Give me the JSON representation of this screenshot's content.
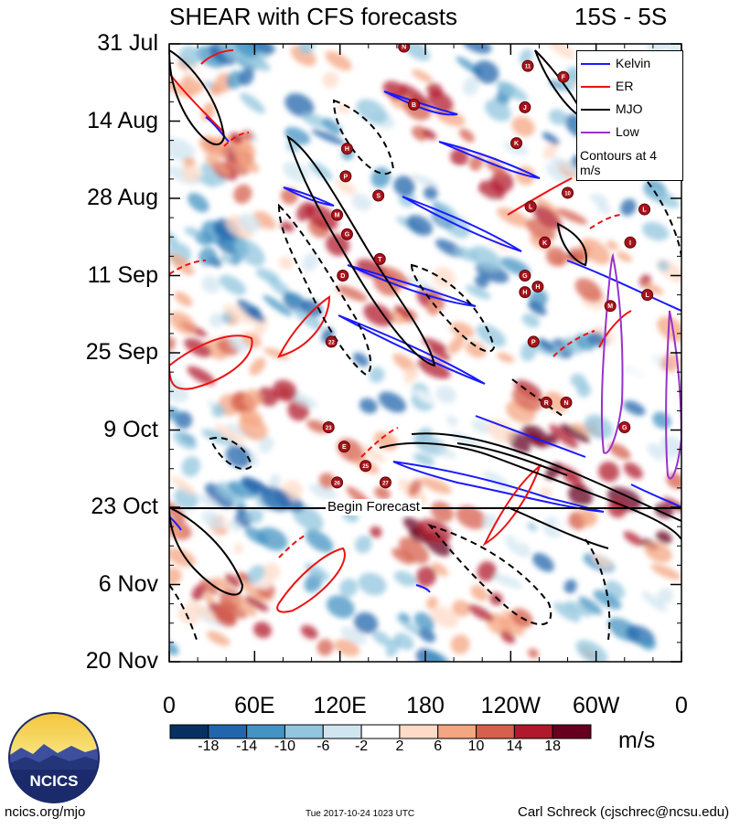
{
  "title": {
    "left": "SHEAR with CFS forecasts",
    "right": "15S - 5S"
  },
  "chart_data": {
    "type": "heatmap",
    "title": "SHEAR with CFS forecasts",
    "region": "15S - 5S",
    "xlabel": "",
    "ylabel": "",
    "x_tick_labels": [
      "0",
      "60E",
      "120E",
      "180",
      "120W",
      "60W",
      "0"
    ],
    "x_ticks_deg_east": [
      0,
      60,
      120,
      180,
      240,
      300,
      360
    ],
    "xlim": [
      0,
      360
    ],
    "y_tick_labels": [
      "31 Jul",
      "14 Aug",
      "28 Aug",
      "11 Sep",
      "25 Sep",
      "9 Oct",
      "23 Oct",
      "6 Nov",
      "20 Nov"
    ],
    "y_ticks_day": [
      0,
      14,
      28,
      42,
      56,
      70,
      84,
      98,
      112
    ],
    "ylim": [
      0,
      112
    ],
    "forecast_start_day": 84,
    "forecast_label": "Begin Forecast",
    "colorbar": {
      "units": "m/s",
      "labels": [
        "-18",
        "-14",
        "-10",
        "-6",
        "-2",
        "2",
        "6",
        "10",
        "14",
        "18"
      ],
      "levels": [
        -18,
        -14,
        -10,
        -6,
        -2,
        2,
        6,
        10,
        14,
        18
      ],
      "colors": [
        "#053061",
        "#2166ac",
        "#4393c3",
        "#92c5de",
        "#d1e5f0",
        "#ffffff",
        "#fddbc7",
        "#f4a582",
        "#d6604d",
        "#b2182b",
        "#67001f"
      ]
    },
    "legend": [
      {
        "name": "Kelvin",
        "color": "#1a1aff"
      },
      {
        "name": "ER",
        "color": "#ee1111"
      },
      {
        "name": "MJO",
        "color": "#000000"
      },
      {
        "name": "Low",
        "color": "#9932cc"
      }
    ],
    "legend_note": "Contours at 4 m/s",
    "storm_markers": [
      {
        "label": "N",
        "lon": 165,
        "day": 0.5
      },
      {
        "label": "11",
        "lon": 252,
        "day": 4
      },
      {
        "label": "F",
        "lon": 277,
        "day": 6
      },
      {
        "label": "B",
        "lon": 172,
        "day": 11
      },
      {
        "label": "J",
        "lon": 250,
        "day": 11.5
      },
      {
        "label": "K",
        "lon": 244,
        "day": 18
      },
      {
        "label": "H",
        "lon": 125,
        "day": 19
      },
      {
        "label": "P",
        "lon": 124,
        "day": 24
      },
      {
        "label": "S",
        "lon": 147,
        "day": 27.5
      },
      {
        "label": "10",
        "lon": 280,
        "day": 27
      },
      {
        "label": "L",
        "lon": 254,
        "day": 29.5
      },
      {
        "label": "M",
        "lon": 118,
        "day": 31
      },
      {
        "label": "L",
        "lon": 334,
        "day": 30
      },
      {
        "label": "G",
        "lon": 125,
        "day": 34.5
      },
      {
        "label": "K",
        "lon": 264,
        "day": 36
      },
      {
        "label": "I",
        "lon": 324,
        "day": 36
      },
      {
        "label": "T",
        "lon": 148,
        "day": 39
      },
      {
        "label": "D",
        "lon": 122,
        "day": 42
      },
      {
        "label": "G",
        "lon": 250,
        "day": 42
      },
      {
        "label": "H",
        "lon": 250,
        "day": 45
      },
      {
        "label": "H",
        "lon": 259,
        "day": 44
      },
      {
        "label": "L",
        "lon": 336,
        "day": 45.5
      },
      {
        "label": "M",
        "lon": 310,
        "day": 47.5
      },
      {
        "label": "22",
        "lon": 114,
        "day": 54
      },
      {
        "label": "P",
        "lon": 256,
        "day": 54
      },
      {
        "label": "R",
        "lon": 265,
        "day": 65
      },
      {
        "label": "N",
        "lon": 279,
        "day": 65
      },
      {
        "label": "23",
        "lon": 112,
        "day": 69.5
      },
      {
        "label": "G",
        "lon": 320,
        "day": 69.5
      },
      {
        "label": "E",
        "lon": 123,
        "day": 73
      },
      {
        "label": "25",
        "lon": 138,
        "day": 76.5
      },
      {
        "label": "26",
        "lon": 118,
        "day": 79.5
      },
      {
        "label": "27",
        "lon": 152,
        "day": 79.5
      }
    ]
  },
  "footer": {
    "left": "ncics.org/mjo",
    "middle": "Tue 2017-10-24 1023 UTC",
    "right": "Carl Schreck (cjschrec@ncsu.edu)",
    "logo_text": "NCICS"
  }
}
